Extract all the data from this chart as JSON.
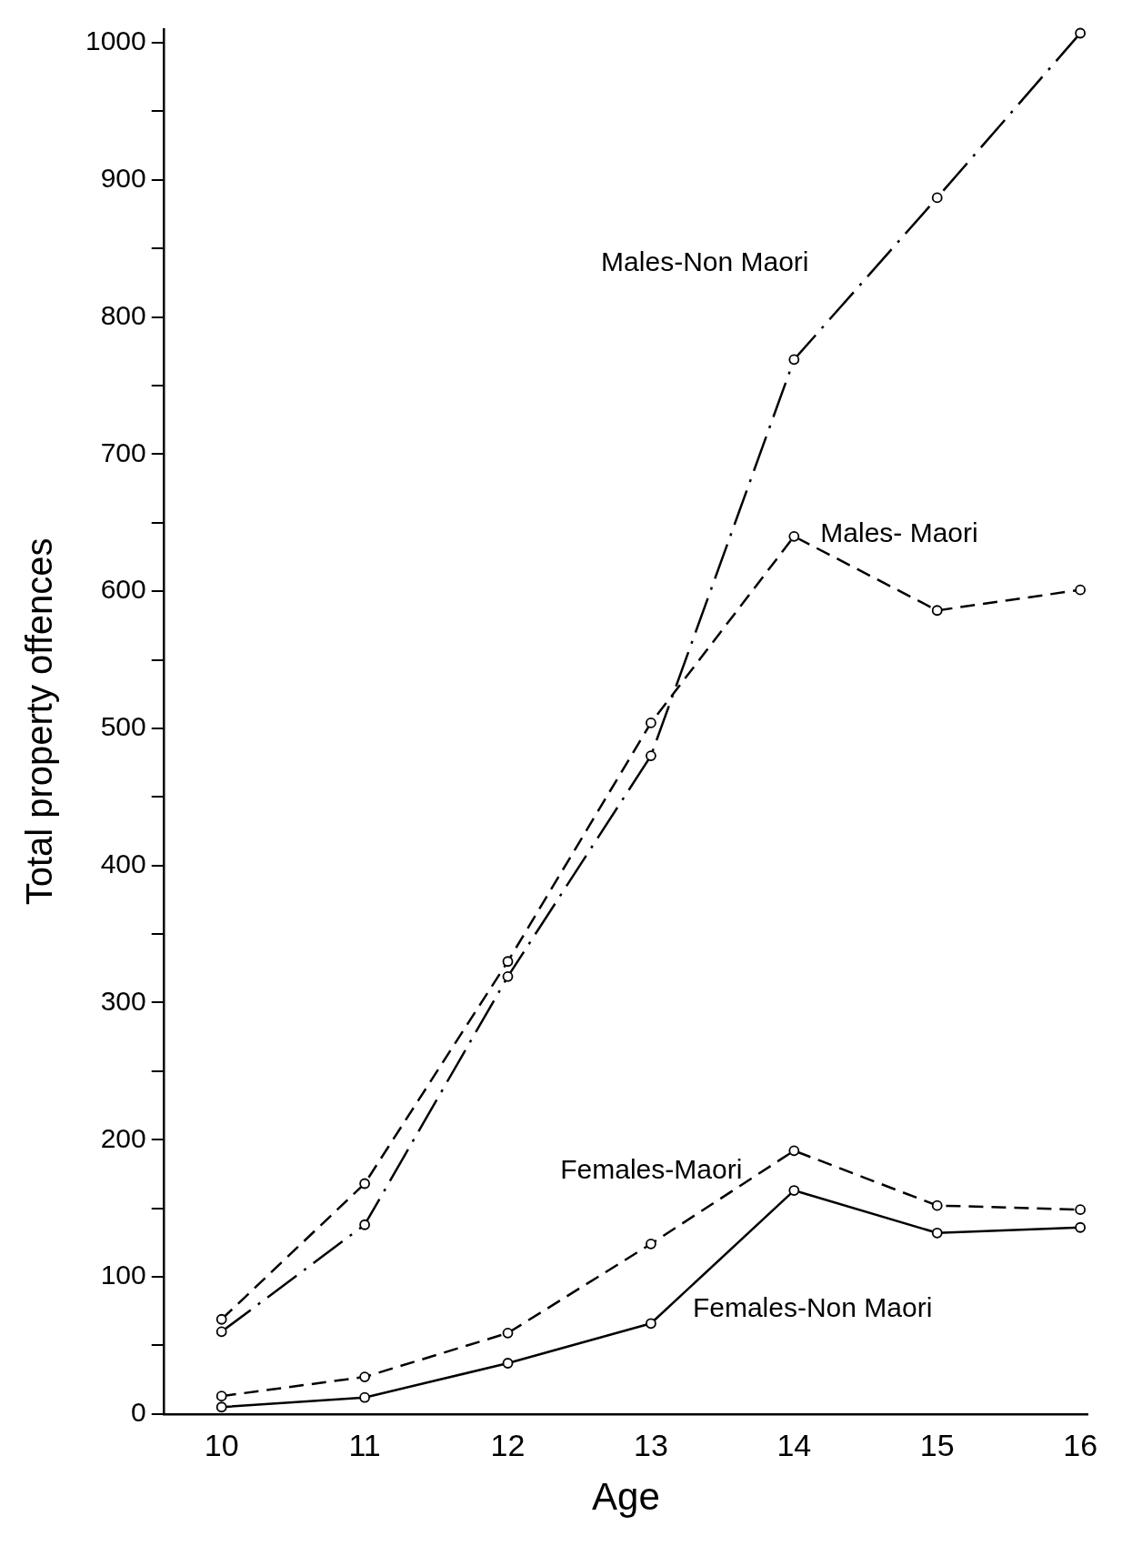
{
  "chart_data": {
    "type": "line",
    "xlabel": "Age",
    "ylabel": "Total property offences",
    "x": [
      10,
      11,
      12,
      13,
      14,
      15,
      16
    ],
    "series": [
      {
        "name": "Males-Non Maori",
        "color": "#000000",
        "line_style": "dashdot",
        "values": [
          60,
          138,
          319,
          480,
          769,
          887,
          1007
        ]
      },
      {
        "name": "Males- Maori",
        "color": "#000000",
        "line_style": "dashed",
        "values": [
          69,
          168,
          330,
          504,
          640,
          586,
          601
        ]
      },
      {
        "name": "Females-Maori",
        "color": "#000000",
        "line_style": "dashed",
        "values": [
          13,
          27,
          59,
          124,
          192,
          152,
          149
        ]
      },
      {
        "name": "Females-Non Maori",
        "color": "#000000",
        "line_style": "solid",
        "values": [
          5,
          12,
          37,
          66,
          163,
          132,
          136
        ]
      }
    ],
    "xlim": [
      9.6,
      16.05
    ],
    "xticks": [
      10,
      11,
      12,
      13,
      14,
      15,
      16
    ],
    "ylim": [
      0,
      1010
    ],
    "yticks": [
      0,
      {
        "value": 50,
        "label": null
      },
      100,
      {
        "value": 150,
        "label": null
      },
      200,
      {
        "value": 250,
        "label": null
      },
      300,
      {
        "value": 350,
        "label": null
      },
      400,
      {
        "value": 450,
        "label": null
      },
      500,
      {
        "value": 550,
        "label": null
      },
      600,
      {
        "value": 650,
        "label": null
      },
      700,
      {
        "value": 750,
        "label": null
      },
      800,
      {
        "value": 850,
        "label": null
      },
      900,
      {
        "value": 950,
        "label": null
      },
      1000
    ],
    "grid": false,
    "legend": false,
    "marker": "circle"
  }
}
